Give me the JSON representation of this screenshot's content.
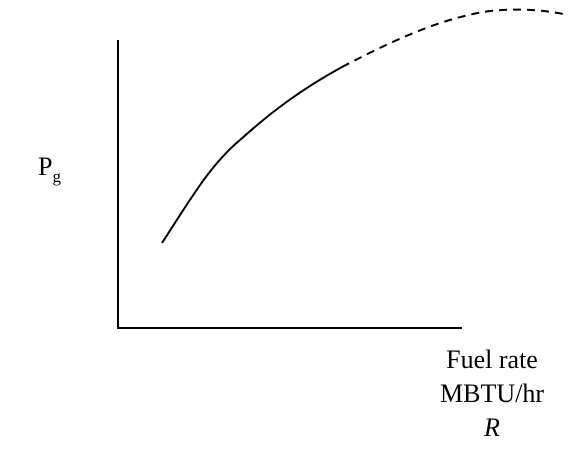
{
  "y_axis": {
    "label": "P",
    "subscript": "g"
  },
  "x_axis": {
    "label_lines": [
      "Fuel rate",
      "MBTU/hr",
      "R"
    ]
  }
}
